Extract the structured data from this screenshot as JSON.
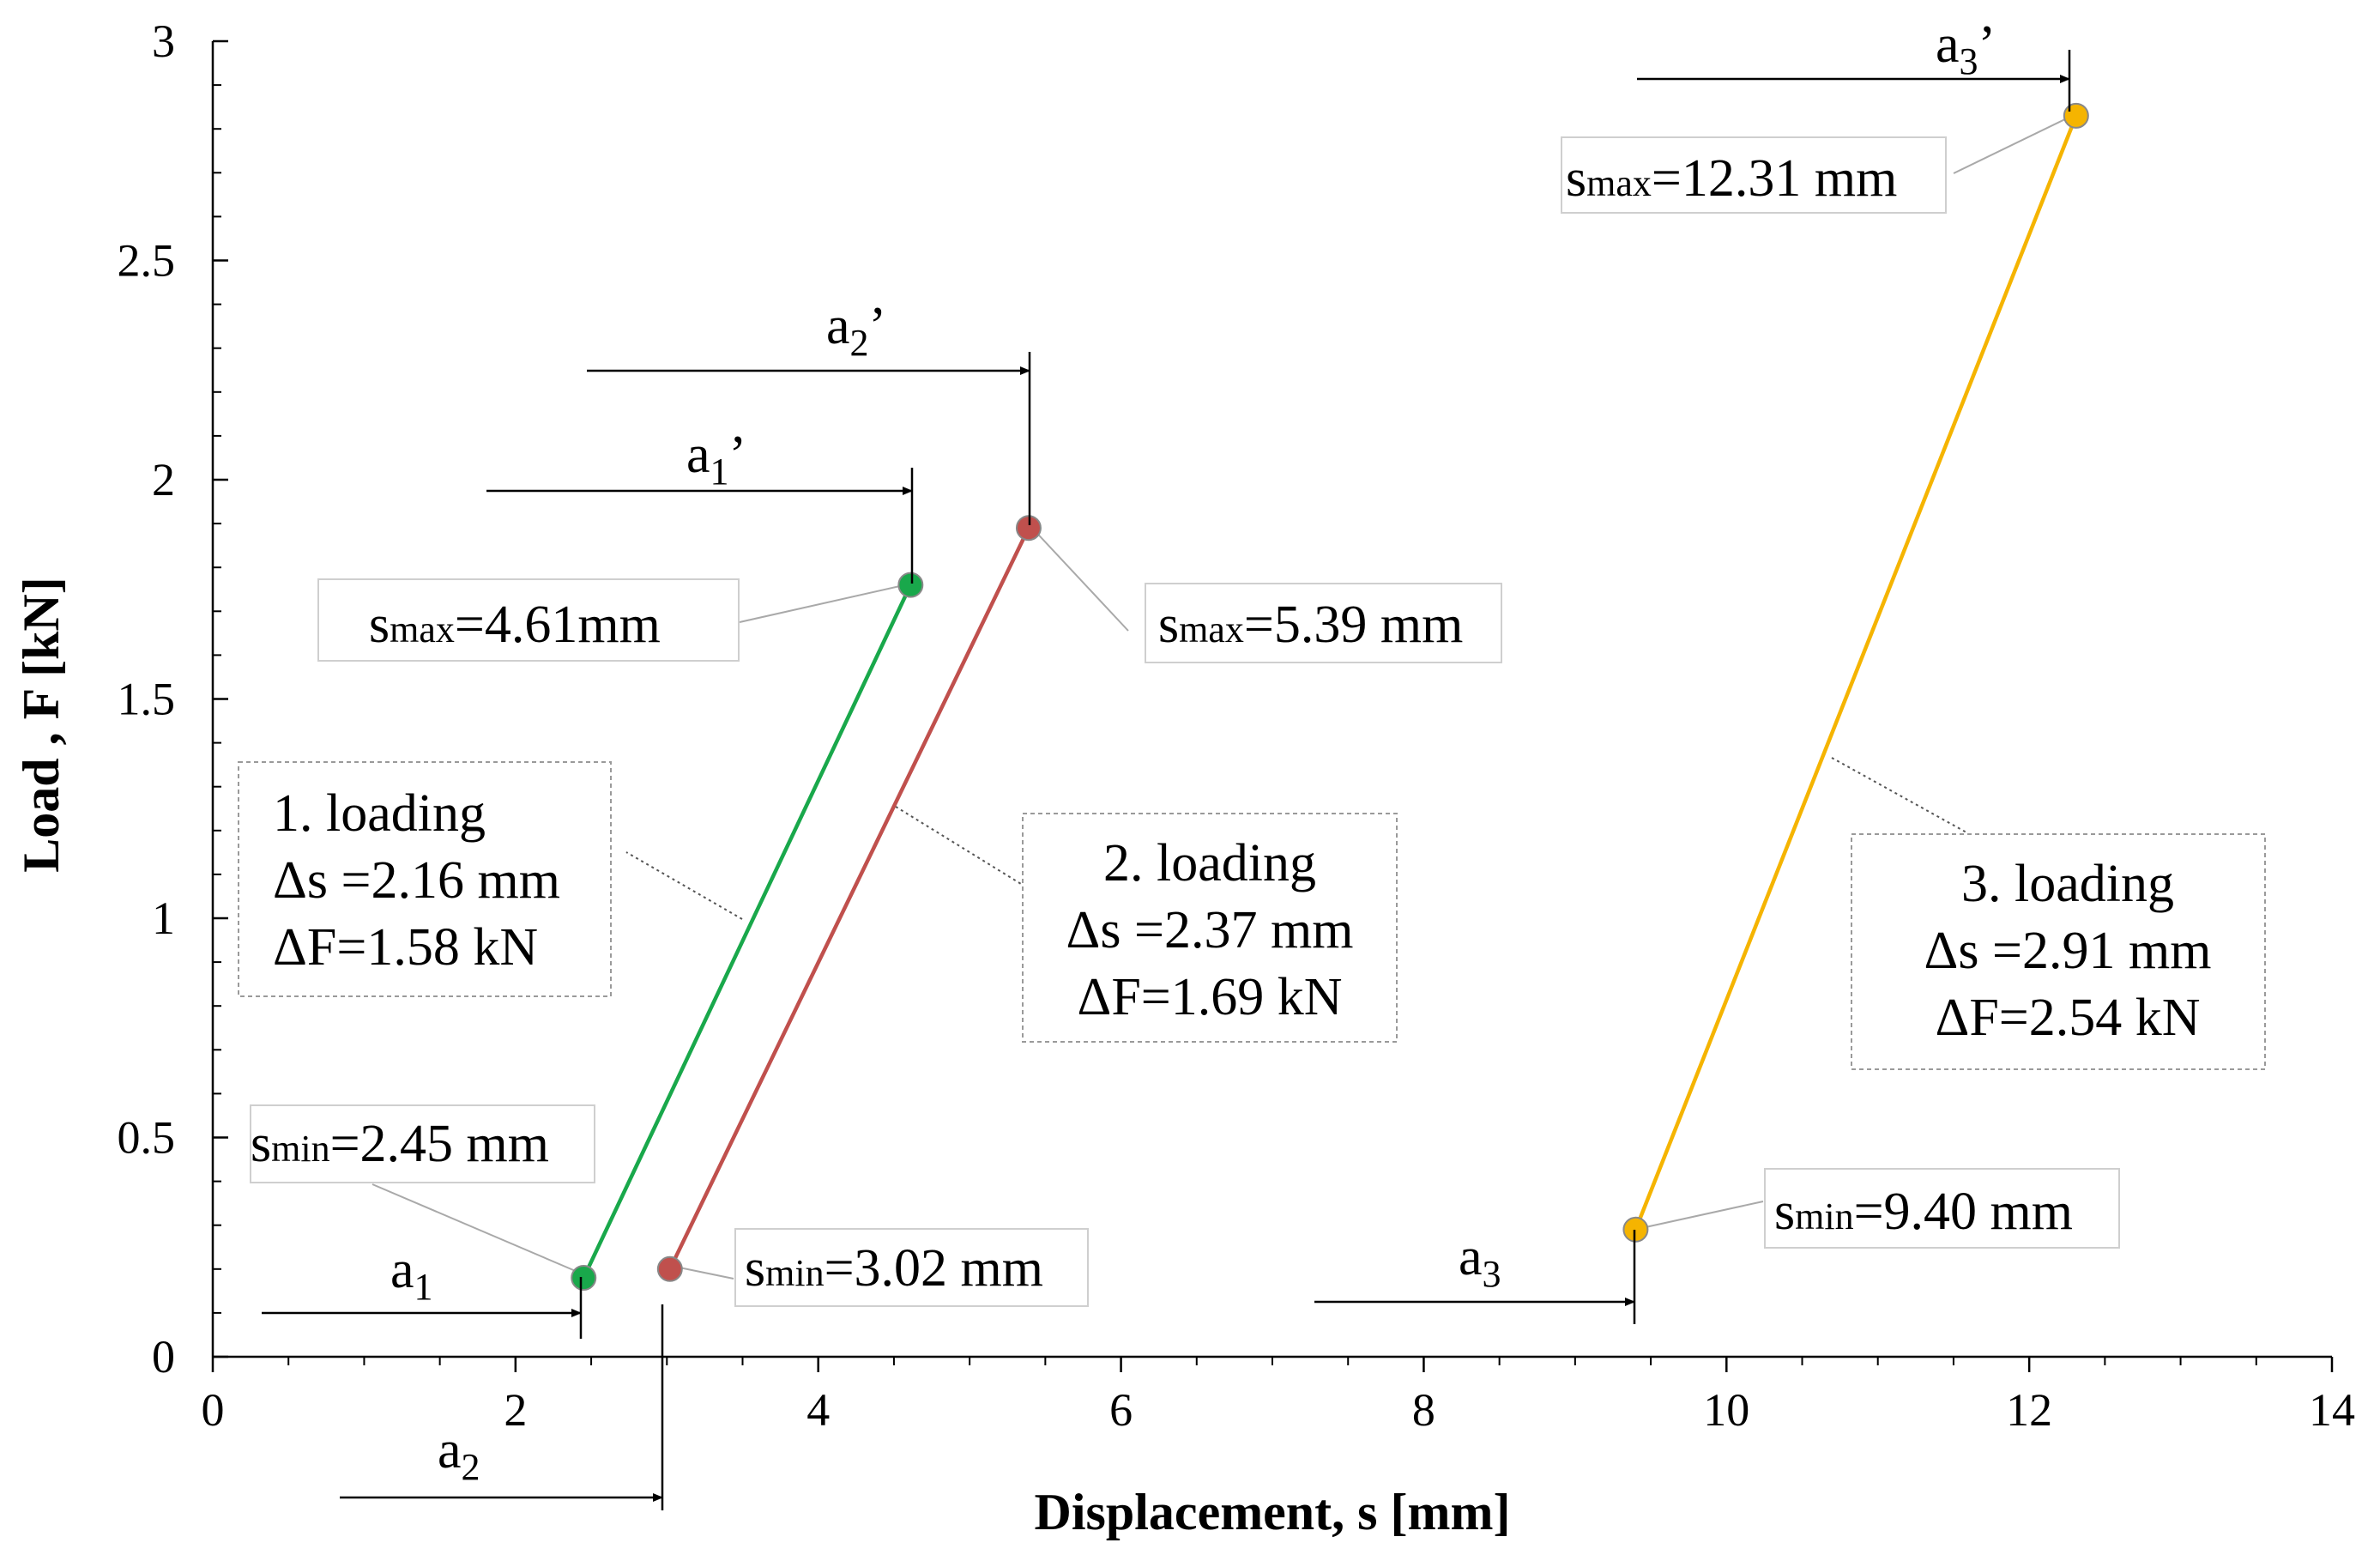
{
  "chart_data": {
    "type": "line",
    "xlabel": "Displacement, s [mm]",
    "ylabel": "Load , F [kN]",
    "xlim": [
      0,
      14
    ],
    "ylim": [
      0,
      3
    ],
    "xticks": [
      "0",
      "2",
      "4",
      "6",
      "8",
      "10",
      "12",
      "14"
    ],
    "yticks": [
      "0",
      "0.5",
      "1",
      "1.5",
      "2",
      "2.5",
      "3"
    ],
    "grid": false,
    "legend": "none",
    "series": [
      {
        "color": "#19a84b",
        "points": [
          [
            2.45,
            0.18
          ],
          [
            4.61,
            1.76
          ]
        ],
        "label_lines": [
          "1. loading",
          "Δs =2.16 mm",
          "ΔF=1.58 kN"
        ],
        "smin_label": "smin=2.45 mm",
        "smax_label": "smax=4.61mm",
        "a_label": "a",
        "a_sub": "1",
        "a_prime_label": "a",
        "a_prime_sub": "1",
        "a_prime_mark": "’"
      },
      {
        "color": "#c0504d",
        "points": [
          [
            3.02,
            0.2
          ],
          [
            5.39,
            1.89
          ]
        ],
        "label_lines": [
          "2. loading",
          "Δs =2.37 mm",
          "ΔF=1.69 kN"
        ],
        "smin_label": "smin=3.02 mm",
        "smax_label": "smax=5.39 mm",
        "a_label": "a",
        "a_sub": "2",
        "a_prime_label": "a",
        "a_prime_sub": "2",
        "a_prime_mark": "’"
      },
      {
        "color": "#f5b400",
        "points": [
          [
            9.4,
            0.29
          ],
          [
            12.31,
            2.83
          ]
        ],
        "label_lines": [
          "3. loading",
          "Δs =2.91 mm",
          "ΔF=2.54 kN"
        ],
        "smin_label": "smin=9.40 mm",
        "smax_label": "smax=12.31 mm",
        "a_label": "a",
        "a_sub": "3",
        "a_prime_label": "a",
        "a_prime_sub": "3",
        "a_prime_mark": "’"
      }
    ]
  }
}
